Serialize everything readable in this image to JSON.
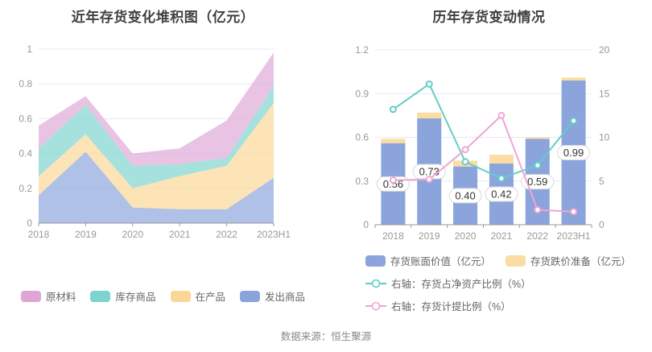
{
  "source_note": "数据来源：恒生聚源",
  "colors": {
    "grid": "#e4e9f4",
    "axis": "#999999",
    "tick_text": "#999999",
    "title": "#404040",
    "legend_text": "#666666",
    "label_text": "#333333",
    "label_border": "#d9d9d9",
    "label_bg": "#ffffff"
  },
  "chart_data": [
    {
      "type": "area",
      "stacked": true,
      "title": "近年存货变化堆积图（亿元）",
      "categories": [
        "2018",
        "2019",
        "2020",
        "2021",
        "2022",
        "2023H1"
      ],
      "ylim": [
        0,
        1
      ],
      "yticks": [
        "0",
        "0.2",
        "0.4",
        "0.6",
        "0.8",
        "1"
      ],
      "grid": true,
      "legend_position": "bottom",
      "series": [
        {
          "name": "发出商品",
          "color": "#8aa4db",
          "values": [
            0.16,
            0.41,
            0.09,
            0.08,
            0.08,
            0.26
          ]
        },
        {
          "name": "在产品",
          "color": "#fad795",
          "values": [
            0.11,
            0.1,
            0.11,
            0.19,
            0.25,
            0.43
          ]
        },
        {
          "name": "库存商品",
          "color": "#7dd3ce",
          "values": [
            0.16,
            0.17,
            0.13,
            0.07,
            0.045,
            0.1
          ]
        },
        {
          "name": "原材料",
          "color": "#dfa6d5",
          "values": [
            0.13,
            0.05,
            0.07,
            0.09,
            0.215,
            0.19
          ]
        }
      ],
      "legend_order": [
        3,
        2,
        1,
        0
      ]
    },
    {
      "type": "bar",
      "title": "历年存货变动情况",
      "categories": [
        "2018",
        "2019",
        "2020",
        "2021",
        "2022",
        "2023H1"
      ],
      "left_axis": {
        "label": "亿元",
        "lim": [
          0,
          1.2
        ],
        "ticks": [
          "0",
          "0.3",
          "0.6",
          "0.9",
          "1.2"
        ]
      },
      "right_axis": {
        "label": "%",
        "lim": [
          0,
          20
        ],
        "ticks": [
          "0",
          "5",
          "10",
          "15",
          "20"
        ]
      },
      "bar_series": [
        {
          "name": "存货账面价值（亿元）",
          "color": "#8ba4dc",
          "values": [
            0.56,
            0.73,
            0.4,
            0.42,
            0.59,
            0.99
          ],
          "labels": [
            "0.56",
            "0.73",
            "0.40",
            "0.42",
            "0.59",
            "0.99"
          ]
        },
        {
          "name": "存货跌价准备（亿元）",
          "color": "#fbdca2",
          "values": [
            0.03,
            0.04,
            0.04,
            0.06,
            0.01,
            0.02
          ]
        }
      ],
      "line_series": [
        {
          "name": "右轴：存货占净资产比例（%）",
          "color": "#63cdc7",
          "axis": "right",
          "values": [
            13.2,
            16.1,
            7.2,
            5.3,
            6.8,
            11.9
          ]
        },
        {
          "name": "右轴：存货计提比例（%）",
          "color": "#efa5d4",
          "axis": "right",
          "values": [
            5.1,
            5.2,
            8.6,
            12.5,
            1.7,
            1.5
          ]
        }
      ]
    }
  ]
}
